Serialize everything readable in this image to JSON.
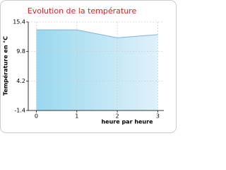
{
  "chart_data": {
    "type": "area",
    "title": "Evolution de la température",
    "y_label": "Température en °C",
    "x_label": "heure par heure",
    "x": [
      0,
      1,
      2,
      3
    ],
    "values": [
      13.9,
      13.9,
      12.4,
      13.0
    ],
    "color": "#7fb4d8",
    "xlim": [
      -0.2,
      3.15
    ],
    "xticks": [
      0,
      1,
      2,
      3
    ],
    "ylim": [
      -1.4,
      15.4
    ],
    "yticks": [
      -1.4,
      4.2,
      9.8,
      15.4
    ],
    "grid": true
  }
}
